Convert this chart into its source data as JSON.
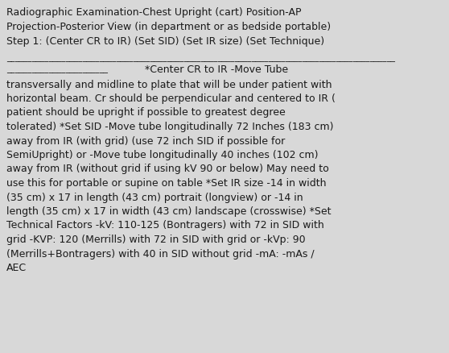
{
  "background_color": "#d8d8d8",
  "title_lines": [
    "Radiographic Examination-Chest Upright (cart) Position-AP",
    "Projection-Posterior View (in department or as bedside portable)",
    "Step 1: (Center CR to IR) (Set SID) (Set IR size) (Set Technique)"
  ],
  "separator_line": "____________________________________________________________________________________________",
  "blank_underline": "________________________",
  "body_lines": [
    " *Center CR to IR -Move Tube",
    "transversally and midline to plate that will be under patient with",
    "horizontal beam. Cr should be perpendicular and centered to IR (",
    "patient should be upright if possible to greatest degree",
    "tolerated) *Set SID -Move tube longitudinally 72 Inches (183 cm)",
    "away from IR (with grid) (use 72 inch SID if possible for",
    "SemiUpright) or -Move tube longitudinally 40 inches (102 cm)",
    "away from IR (without grid if using kV 90 or below) May need to",
    "use this for portable or supine on table *Set IR size -14 in width",
    "(35 cm) x 17 in length (43 cm) portrait (longview) or -14 in",
    "length (35 cm) x 17 in width (43 cm) landscape (crosswise) *Set",
    "Technical Factors -kV: 110-125 (Bontragers) with 72 in SID with",
    "grid -KVP: 120 (Merrills) with 72 in SID with grid or -kVp: 90",
    "(Merrills+Bontragers) with 40 in SID without grid -mA: -mAs /",
    "AEC"
  ],
  "title_fontsize": 9.0,
  "body_fontsize": 9.0,
  "sep_fontsize": 7.5,
  "text_color": "#1a1a1a",
  "font_family": "DejaVu Sans"
}
